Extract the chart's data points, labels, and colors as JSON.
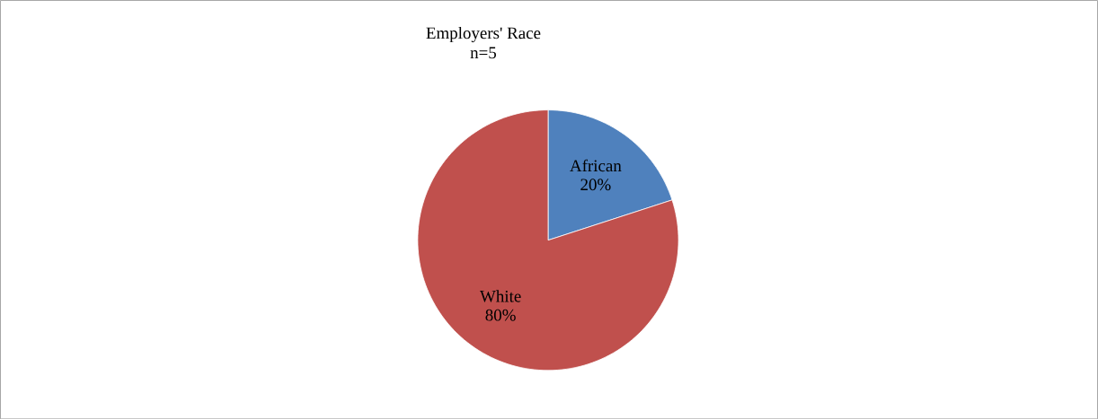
{
  "chart_data": {
    "type": "pie",
    "title": "Employers' Race",
    "subtitle": "n=5",
    "categories": [
      "African",
      "White"
    ],
    "values": [
      20,
      80
    ],
    "colors": [
      "#4f81bd",
      "#c0504d"
    ],
    "value_labels": [
      "20%",
      "80%"
    ],
    "legend": false
  }
}
